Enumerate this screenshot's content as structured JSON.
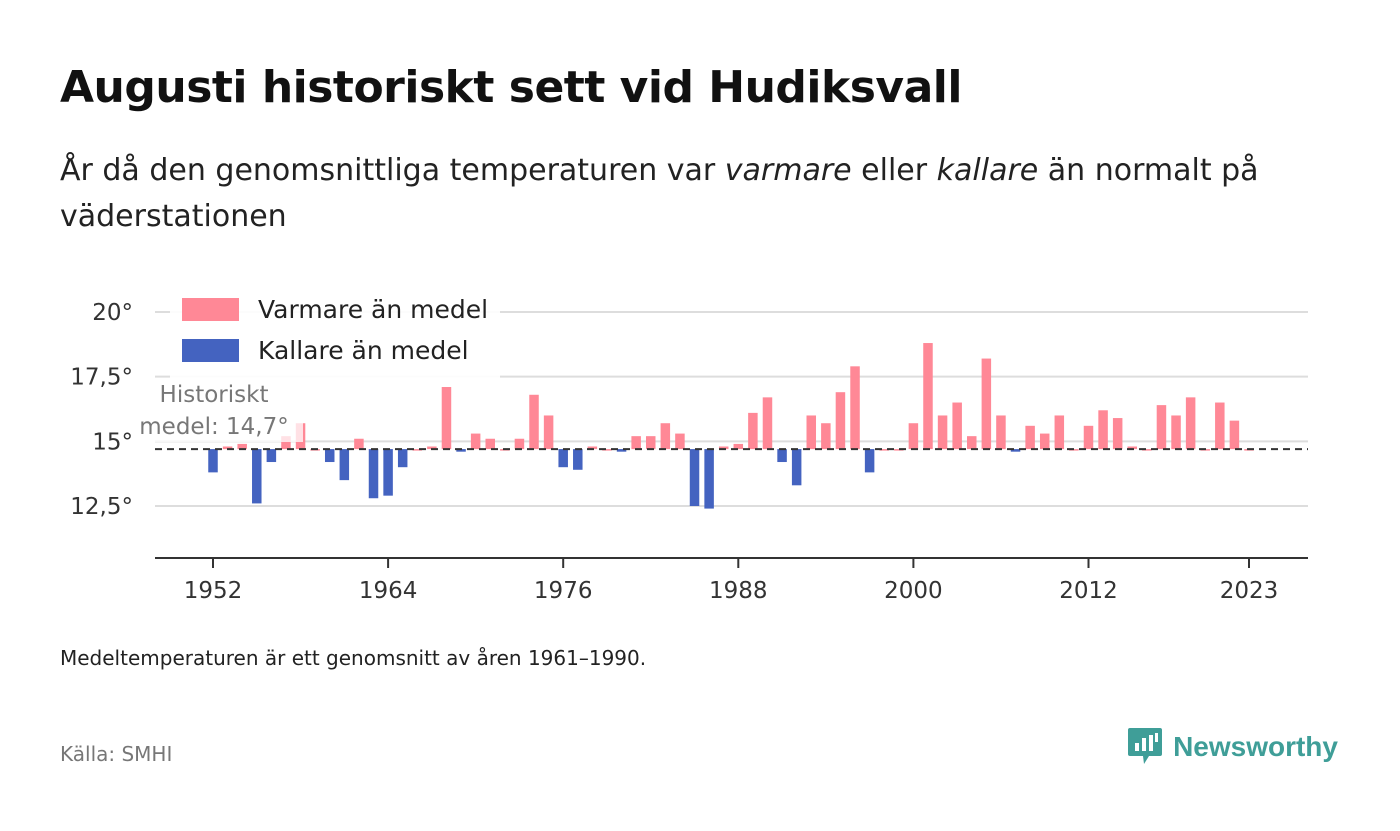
{
  "header": {
    "title": "Augusti historiskt sett vid Hudiksvall",
    "subtitle_parts": [
      "År då den genomsnittliga temperaturen var ",
      "varmare",
      " eller ",
      "kallare",
      " än normalt på väderstationen"
    ]
  },
  "footer": {
    "note": "Medeltemperaturen är ett genomsnitt av åren 1961–1990.",
    "source": "Källa: SMHI",
    "brand": "Newsworthy",
    "brand_icon": "newsworthy-logo-icon"
  },
  "colors": {
    "warm": "#ff8896",
    "cold": "#4463c0",
    "brand": "#3f9e98",
    "grid": "#dddddd",
    "axis": "#333333"
  },
  "chart_data": {
    "type": "bar",
    "baseline": 14.7,
    "baseline_label": [
      "Historiskt",
      "medel: 14,7°"
    ],
    "ylim": [
      10.5,
      20.8
    ],
    "y_ticks": [
      12.5,
      15,
      17.5,
      20
    ],
    "y_tick_labels": [
      "12,5°",
      "15°",
      "17,5°",
      "20°"
    ],
    "x_ticks": [
      1952,
      1964,
      1976,
      1988,
      2000,
      2012,
      2023
    ],
    "x_tick_labels": [
      "1952",
      "1964",
      "1976",
      "1988",
      "2000",
      "2012",
      "2023"
    ],
    "legend": [
      {
        "label": "Varmare än medel",
        "color": "#ff8896"
      },
      {
        "label": "Kallare än medel",
        "color": "#4463c0"
      }
    ],
    "legend_position": "top-left",
    "grid": true,
    "years": [
      1952,
      1953,
      1954,
      1955,
      1956,
      1957,
      1958,
      1959,
      1960,
      1961,
      1962,
      1963,
      1964,
      1965,
      1966,
      1967,
      1968,
      1969,
      1970,
      1971,
      1972,
      1973,
      1974,
      1975,
      1976,
      1977,
      1978,
      1979,
      1980,
      1981,
      1982,
      1983,
      1984,
      1985,
      1986,
      1987,
      1988,
      1989,
      1990,
      1991,
      1992,
      1993,
      1994,
      1995,
      1996,
      1997,
      1998,
      1999,
      2000,
      2001,
      2002,
      2003,
      2004,
      2005,
      2006,
      2007,
      2008,
      2009,
      2010,
      2011,
      2012,
      2013,
      2014,
      2015,
      2016,
      2017,
      2018,
      2019,
      2020,
      2021,
      2022,
      2023
    ],
    "values": [
      13.8,
      14.8,
      14.9,
      12.6,
      14.2,
      15.2,
      15.7,
      14.7,
      14.2,
      13.5,
      15.1,
      12.8,
      12.9,
      14.0,
      14.7,
      14.8,
      17.1,
      14.6,
      15.3,
      15.1,
      14.7,
      15.1,
      16.8,
      16.0,
      14.0,
      13.9,
      14.8,
      14.7,
      14.6,
      15.2,
      15.2,
      15.7,
      15.3,
      12.5,
      12.4,
      14.8,
      14.9,
      16.1,
      16.7,
      14.2,
      13.3,
      16.0,
      15.7,
      16.9,
      17.9,
      13.8,
      14.7,
      14.7,
      15.7,
      18.8,
      16.0,
      16.5,
      15.2,
      18.2,
      16.0,
      14.6,
      15.6,
      15.3,
      16.0,
      14.7,
      15.6,
      16.2,
      15.9,
      14.8,
      14.7,
      16.4,
      16.0,
      16.7,
      14.7,
      16.5,
      15.8,
      14.7
    ]
  }
}
